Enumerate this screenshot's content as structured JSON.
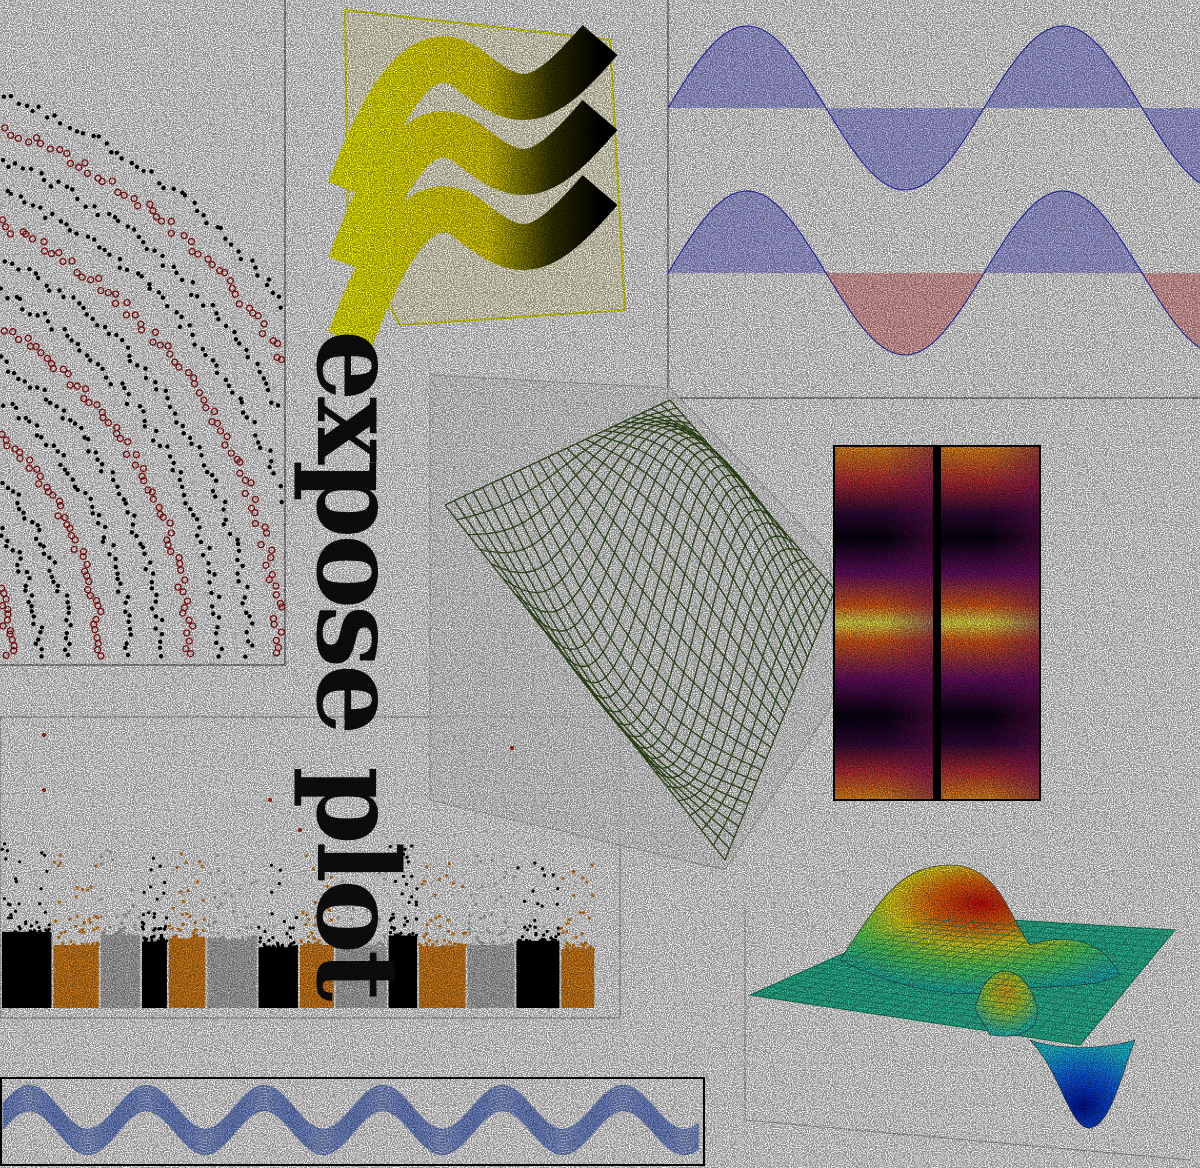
{
  "title": "expose plot"
}
